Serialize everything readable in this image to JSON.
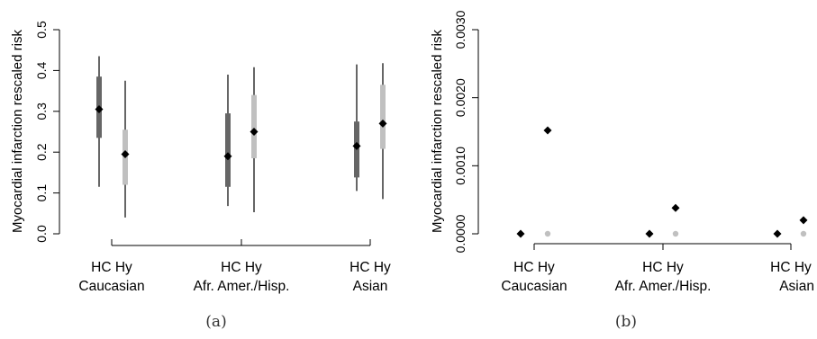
{
  "chart_data": [
    {
      "type": "interval",
      "ylabel": "Myocardial infarction rescaled risk",
      "caption": "(a)",
      "ylim": [
        0,
        0.5
      ],
      "yticks": [
        "0.0",
        "0.1",
        "0.2",
        "0.3",
        "0.4",
        "0.5"
      ],
      "groups": [
        {
          "name": "Caucasian",
          "labels": [
            "HC",
            "Hy"
          ],
          "items": [
            {
              "label": "HC",
              "point": 0.305,
              "inner": [
                0.235,
                0.385
              ],
              "outer": [
                0.115,
                0.435
              ],
              "color": "#666666"
            },
            {
              "label": "Hy",
              "point": 0.195,
              "inner": [
                0.12,
                0.255
              ],
              "outer": [
                0.04,
                0.375
              ],
              "color": "#c0c0c0"
            }
          ]
        },
        {
          "name": "Afr. Amer./Hisp.",
          "labels": [
            "HC",
            "Hy"
          ],
          "items": [
            {
              "label": "HC",
              "point": 0.19,
              "inner": [
                0.115,
                0.295
              ],
              "outer": [
                0.068,
                0.39
              ],
              "color": "#666666"
            },
            {
              "label": "Hy",
              "point": 0.25,
              "inner": [
                0.185,
                0.34
              ],
              "outer": [
                0.053,
                0.408
              ],
              "color": "#c0c0c0"
            }
          ]
        },
        {
          "name": "Asian",
          "labels": [
            "HC",
            "Hy"
          ],
          "items": [
            {
              "label": "HC",
              "point": 0.215,
              "inner": [
                0.138,
                0.275
              ],
              "outer": [
                0.105,
                0.415
              ],
              "color": "#666666"
            },
            {
              "label": "Hy",
              "point": 0.27,
              "inner": [
                0.208,
                0.365
              ],
              "outer": [
                0.085,
                0.418
              ],
              "color": "#c0c0c0"
            }
          ]
        }
      ]
    },
    {
      "type": "scatter",
      "ylabel": "Myocardial infarction rescaled risk",
      "caption": "(b)",
      "ylim": [
        0,
        0.003
      ],
      "yticks": [
        "0.0000",
        "0.0010",
        "0.0020",
        "0.0030"
      ],
      "groups": [
        {
          "name": "Caucasian",
          "labels": [
            "HC",
            "Hy"
          ],
          "items": [
            {
              "label": "HC",
              "point": 0.0
            },
            {
              "label": "Hy",
              "point": 0.00152,
              "low": 0.0
            }
          ]
        },
        {
          "name": "Afr. Amer./Hisp.",
          "labels": [
            "HC",
            "Hy"
          ],
          "items": [
            {
              "label": "HC",
              "point": 0.0
            },
            {
              "label": "Hy",
              "point": 0.00038,
              "low": 0.0
            }
          ]
        },
        {
          "name": "Asian",
          "labels": [
            "HC",
            "Hy"
          ],
          "items": [
            {
              "label": "HC",
              "point": 0.0
            },
            {
              "label": "Hy",
              "point": 0.0002,
              "low": 0.0
            }
          ]
        }
      ]
    }
  ]
}
